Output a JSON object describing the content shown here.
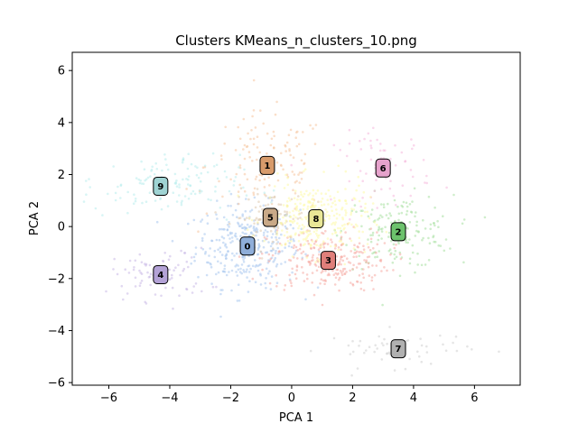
{
  "chart_data": {
    "type": "scatter",
    "title": "Clusters KMeans_n_clusters_10.png",
    "xlabel": "PCA 1",
    "ylabel": "PCA 2",
    "xlim": [
      -7.2,
      7.5
    ],
    "ylim": [
      -6.1,
      6.7
    ],
    "xticks": [
      -6,
      -4,
      -2,
      0,
      2,
      4,
      6
    ],
    "yticks": [
      -6,
      -4,
      -2,
      0,
      2,
      4,
      6
    ],
    "grid": false,
    "point_alpha": 0.55,
    "clusters": [
      {
        "label": "0",
        "center": [
          -1.45,
          -0.75
        ],
        "color": "#a7c7ee",
        "spread": [
          0.85,
          0.8
        ],
        "n": 320
      },
      {
        "label": "1",
        "center": [
          -0.8,
          2.35
        ],
        "color": "#f5c59f",
        "spread": [
          1.0,
          1.0
        ],
        "n": 130
      },
      {
        "label": "2",
        "center": [
          3.5,
          -0.2
        ],
        "color": "#a8e0a0",
        "spread": [
          0.9,
          0.7
        ],
        "n": 170
      },
      {
        "label": "3",
        "center": [
          1.2,
          -1.3
        ],
        "color": "#f5aaa3",
        "spread": [
          1.0,
          0.6
        ],
        "n": 260
      },
      {
        "label": "4",
        "center": [
          -4.3,
          -1.85
        ],
        "color": "#c8b8e6",
        "spread": [
          0.8,
          0.5
        ],
        "n": 80
      },
      {
        "label": "5",
        "center": [
          -0.7,
          0.35
        ],
        "color": "#dfc9ad",
        "spread": [
          0.6,
          0.5
        ],
        "n": 90
      },
      {
        "label": "6",
        "center": [
          3.0,
          2.25
        ],
        "color": "#f5b8dc",
        "spread": [
          0.8,
          0.7
        ],
        "n": 70
      },
      {
        "label": "7",
        "center": [
          3.5,
          -4.7
        ],
        "color": "#cfcfcf",
        "spread": [
          1.2,
          0.35
        ],
        "n": 55
      },
      {
        "label": "8",
        "center": [
          0.8,
          0.3
        ],
        "color": "#fdfaa6",
        "spread": [
          0.85,
          0.7
        ],
        "n": 300
      },
      {
        "label": "9",
        "center": [
          -4.3,
          1.55
        ],
        "color": "#b8ecec",
        "spread": [
          1.3,
          0.6
        ],
        "n": 130
      }
    ],
    "label_colors": {
      "0": "#8faed9",
      "1": "#d89b6b",
      "2": "#6cc26c",
      "3": "#e07f7a",
      "4": "#b3a2d6",
      "5": "#c9a988",
      "6": "#e6a2cc",
      "7": "#b0b0b0",
      "8": "#e9e796",
      "9": "#9fd3d3"
    }
  }
}
